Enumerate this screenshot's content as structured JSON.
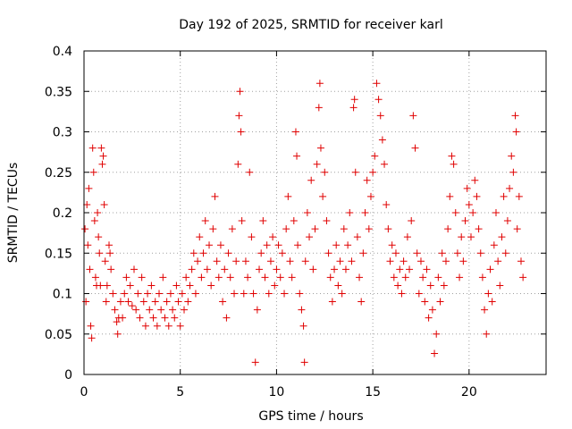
{
  "chart_data": {
    "type": "scatter",
    "title": "Day 192 of 2025, SRMTID for receiver karl",
    "xlabel": "GPS time / hours",
    "ylabel": "SRMTID / TECUs",
    "xlim": [
      0,
      24
    ],
    "ylim": [
      0,
      0.4
    ],
    "xticks": [
      0,
      5,
      10,
      15,
      20
    ],
    "xtick_labels": [
      "0",
      "5",
      "10",
      "15",
      "20"
    ],
    "yticks": [
      0,
      0.05,
      0.1,
      0.15,
      0.2,
      0.25,
      0.3,
      0.35,
      0.4
    ],
    "ytick_labels": [
      "0",
      "0.05",
      "0.1",
      "0.15",
      "0.2",
      "0.25",
      "0.3",
      "0.35",
      "0.4"
    ],
    "grid": true,
    "marker": "+",
    "color": "#e00000",
    "series": [
      {
        "name": "SRMTID",
        "points": [
          [
            0.05,
            0.18
          ],
          [
            0.1,
            0.09
          ],
          [
            0.15,
            0.21
          ],
          [
            0.2,
            0.16
          ],
          [
            0.25,
            0.23
          ],
          [
            0.3,
            0.13
          ],
          [
            0.35,
            0.06
          ],
          [
            0.4,
            0.045
          ],
          [
            0.45,
            0.28
          ],
          [
            0.5,
            0.25
          ],
          [
            0.55,
            0.19
          ],
          [
            0.6,
            0.12
          ],
          [
            0.65,
            0.11
          ],
          [
            0.7,
            0.2
          ],
          [
            0.75,
            0.17
          ],
          [
            0.8,
            0.15
          ],
          [
            0.85,
            0.11
          ],
          [
            0.9,
            0.28
          ],
          [
            0.95,
            0.26
          ],
          [
            1.0,
            0.27
          ],
          [
            1.05,
            0.21
          ],
          [
            1.1,
            0.14
          ],
          [
            1.15,
            0.09
          ],
          [
            1.2,
            0.11
          ],
          [
            1.3,
            0.16
          ],
          [
            1.35,
            0.15
          ],
          [
            1.4,
            0.13
          ],
          [
            1.5,
            0.1
          ],
          [
            1.6,
            0.08
          ],
          [
            1.7,
            0.065
          ],
          [
            1.75,
            0.05
          ],
          [
            1.8,
            0.07
          ],
          [
            1.9,
            0.09
          ],
          [
            2.0,
            0.07
          ],
          [
            2.1,
            0.1
          ],
          [
            2.2,
            0.12
          ],
          [
            2.3,
            0.09
          ],
          [
            2.4,
            0.11
          ],
          [
            2.5,
            0.085
          ],
          [
            2.6,
            0.13
          ],
          [
            2.7,
            0.08
          ],
          [
            2.8,
            0.1
          ],
          [
            2.9,
            0.07
          ],
          [
            3.0,
            0.12
          ],
          [
            3.1,
            0.09
          ],
          [
            3.2,
            0.06
          ],
          [
            3.3,
            0.1
          ],
          [
            3.4,
            0.08
          ],
          [
            3.5,
            0.11
          ],
          [
            3.6,
            0.07
          ],
          [
            3.7,
            0.09
          ],
          [
            3.8,
            0.06
          ],
          [
            3.9,
            0.1
          ],
          [
            4.0,
            0.08
          ],
          [
            4.1,
            0.12
          ],
          [
            4.2,
            0.07
          ],
          [
            4.3,
            0.09
          ],
          [
            4.4,
            0.06
          ],
          [
            4.5,
            0.1
          ],
          [
            4.6,
            0.08
          ],
          [
            4.7,
            0.07
          ],
          [
            4.8,
            0.11
          ],
          [
            4.9,
            0.09
          ],
          [
            5.0,
            0.06
          ],
          [
            5.1,
            0.1
          ],
          [
            5.2,
            0.08
          ],
          [
            5.3,
            0.12
          ],
          [
            5.4,
            0.09
          ],
          [
            5.5,
            0.11
          ],
          [
            5.6,
            0.13
          ],
          [
            5.7,
            0.15
          ],
          [
            5.8,
            0.1
          ],
          [
            5.9,
            0.14
          ],
          [
            6.0,
            0.17
          ],
          [
            6.1,
            0.12
          ],
          [
            6.2,
            0.15
          ],
          [
            6.3,
            0.19
          ],
          [
            6.4,
            0.13
          ],
          [
            6.5,
            0.16
          ],
          [
            6.6,
            0.11
          ],
          [
            6.7,
            0.18
          ],
          [
            6.8,
            0.22
          ],
          [
            6.9,
            0.14
          ],
          [
            7.0,
            0.12
          ],
          [
            7.1,
            0.16
          ],
          [
            7.2,
            0.09
          ],
          [
            7.3,
            0.13
          ],
          [
            7.4,
            0.07
          ],
          [
            7.5,
            0.15
          ],
          [
            7.6,
            0.12
          ],
          [
            7.7,
            0.18
          ],
          [
            7.8,
            0.1
          ],
          [
            7.9,
            0.14
          ],
          [
            8.0,
            0.26
          ],
          [
            8.05,
            0.32
          ],
          [
            8.1,
            0.35
          ],
          [
            8.15,
            0.3
          ],
          [
            8.2,
            0.19
          ],
          [
            8.3,
            0.1
          ],
          [
            8.4,
            0.14
          ],
          [
            8.5,
            0.12
          ],
          [
            8.6,
            0.25
          ],
          [
            8.7,
            0.17
          ],
          [
            8.8,
            0.1
          ],
          [
            8.9,
            0.015
          ],
          [
            9.0,
            0.08
          ],
          [
            9.1,
            0.13
          ],
          [
            9.2,
            0.15
          ],
          [
            9.3,
            0.19
          ],
          [
            9.4,
            0.12
          ],
          [
            9.5,
            0.16
          ],
          [
            9.6,
            0.1
          ],
          [
            9.7,
            0.14
          ],
          [
            9.8,
            0.17
          ],
          [
            9.9,
            0.11
          ],
          [
            10.0,
            0.13
          ],
          [
            10.1,
            0.16
          ],
          [
            10.2,
            0.12
          ],
          [
            10.3,
            0.15
          ],
          [
            10.4,
            0.1
          ],
          [
            10.5,
            0.18
          ],
          [
            10.6,
            0.22
          ],
          [
            10.7,
            0.14
          ],
          [
            10.8,
            0.12
          ],
          [
            10.9,
            0.19
          ],
          [
            11.0,
            0.3
          ],
          [
            11.05,
            0.27
          ],
          [
            11.1,
            0.16
          ],
          [
            11.2,
            0.1
          ],
          [
            11.3,
            0.08
          ],
          [
            11.4,
            0.06
          ],
          [
            11.45,
            0.015
          ],
          [
            11.5,
            0.14
          ],
          [
            11.6,
            0.2
          ],
          [
            11.7,
            0.17
          ],
          [
            11.8,
            0.24
          ],
          [
            11.9,
            0.13
          ],
          [
            12.0,
            0.18
          ],
          [
            12.1,
            0.26
          ],
          [
            12.2,
            0.33
          ],
          [
            12.25,
            0.36
          ],
          [
            12.3,
            0.28
          ],
          [
            12.4,
            0.22
          ],
          [
            12.5,
            0.25
          ],
          [
            12.6,
            0.19
          ],
          [
            12.7,
            0.15
          ],
          [
            12.8,
            0.12
          ],
          [
            12.9,
            0.09
          ],
          [
            13.0,
            0.13
          ],
          [
            13.1,
            0.16
          ],
          [
            13.2,
            0.11
          ],
          [
            13.3,
            0.14
          ],
          [
            13.4,
            0.1
          ],
          [
            13.5,
            0.18
          ],
          [
            13.6,
            0.13
          ],
          [
            13.7,
            0.16
          ],
          [
            13.8,
            0.2
          ],
          [
            13.9,
            0.14
          ],
          [
            14.0,
            0.33
          ],
          [
            14.05,
            0.34
          ],
          [
            14.1,
            0.25
          ],
          [
            14.2,
            0.17
          ],
          [
            14.3,
            0.12
          ],
          [
            14.4,
            0.09
          ],
          [
            14.5,
            0.15
          ],
          [
            14.6,
            0.2
          ],
          [
            14.7,
            0.24
          ],
          [
            14.8,
            0.18
          ],
          [
            14.9,
            0.22
          ],
          [
            15.0,
            0.25
          ],
          [
            15.1,
            0.27
          ],
          [
            15.2,
            0.36
          ],
          [
            15.3,
            0.34
          ],
          [
            15.4,
            0.32
          ],
          [
            15.5,
            0.29
          ],
          [
            15.6,
            0.26
          ],
          [
            15.7,
            0.21
          ],
          [
            15.8,
            0.18
          ],
          [
            15.9,
            0.14
          ],
          [
            16.0,
            0.16
          ],
          [
            16.1,
            0.12
          ],
          [
            16.2,
            0.15
          ],
          [
            16.3,
            0.11
          ],
          [
            16.4,
            0.13
          ],
          [
            16.5,
            0.1
          ],
          [
            16.6,
            0.14
          ],
          [
            16.7,
            0.12
          ],
          [
            16.8,
            0.17
          ],
          [
            16.9,
            0.13
          ],
          [
            17.0,
            0.19
          ],
          [
            17.1,
            0.32
          ],
          [
            17.2,
            0.28
          ],
          [
            17.3,
            0.15
          ],
          [
            17.4,
            0.1
          ],
          [
            17.5,
            0.14
          ],
          [
            17.6,
            0.12
          ],
          [
            17.7,
            0.09
          ],
          [
            17.8,
            0.13
          ],
          [
            17.9,
            0.07
          ],
          [
            18.0,
            0.11
          ],
          [
            18.1,
            0.08
          ],
          [
            18.2,
            0.026
          ],
          [
            18.3,
            0.05
          ],
          [
            18.4,
            0.12
          ],
          [
            18.5,
            0.09
          ],
          [
            18.6,
            0.15
          ],
          [
            18.7,
            0.11
          ],
          [
            18.8,
            0.14
          ],
          [
            18.9,
            0.18
          ],
          [
            19.0,
            0.22
          ],
          [
            19.1,
            0.27
          ],
          [
            19.2,
            0.26
          ],
          [
            19.3,
            0.2
          ],
          [
            19.4,
            0.15
          ],
          [
            19.5,
            0.12
          ],
          [
            19.6,
            0.17
          ],
          [
            19.7,
            0.14
          ],
          [
            19.8,
            0.19
          ],
          [
            19.9,
            0.23
          ],
          [
            20.0,
            0.21
          ],
          [
            20.1,
            0.17
          ],
          [
            20.2,
            0.2
          ],
          [
            20.3,
            0.24
          ],
          [
            20.4,
            0.22
          ],
          [
            20.5,
            0.18
          ],
          [
            20.6,
            0.15
          ],
          [
            20.7,
            0.12
          ],
          [
            20.8,
            0.08
          ],
          [
            20.9,
            0.05
          ],
          [
            21.0,
            0.1
          ],
          [
            21.1,
            0.13
          ],
          [
            21.2,
            0.09
          ],
          [
            21.3,
            0.16
          ],
          [
            21.4,
            0.2
          ],
          [
            21.5,
            0.14
          ],
          [
            21.6,
            0.11
          ],
          [
            21.7,
            0.17
          ],
          [
            21.8,
            0.22
          ],
          [
            21.9,
            0.15
          ],
          [
            22.0,
            0.19
          ],
          [
            22.1,
            0.23
          ],
          [
            22.2,
            0.27
          ],
          [
            22.3,
            0.25
          ],
          [
            22.4,
            0.32
          ],
          [
            22.45,
            0.3
          ],
          [
            22.5,
            0.18
          ],
          [
            22.6,
            0.22
          ],
          [
            22.7,
            0.14
          ],
          [
            22.8,
            0.12
          ]
        ]
      }
    ]
  }
}
